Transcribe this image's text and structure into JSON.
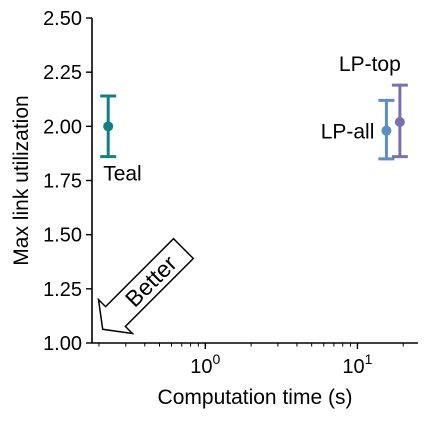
{
  "chart_data": {
    "type": "scatter",
    "title": "",
    "xlabel": "Computation time (s)",
    "ylabel": "Max link utilization",
    "xscale": "log",
    "xlim": [
      0.18,
      25
    ],
    "ylim": [
      1.0,
      2.5
    ],
    "y_ticks": [
      "1.00",
      "1.25",
      "1.50",
      "1.75",
      "2.00",
      "2.25",
      "2.50"
    ],
    "y_tick_values": [
      1.0,
      1.25,
      1.5,
      1.75,
      2.0,
      2.25,
      2.5
    ],
    "x_tick_values": [
      1,
      10
    ],
    "x_ticks": [
      {
        "base": "10",
        "exp": "0"
      },
      {
        "base": "10",
        "exp": "1"
      }
    ],
    "grid": false,
    "points": [
      {
        "label": "Teal",
        "x": 0.23,
        "y": 2.0,
        "err_low": 1.86,
        "err_high": 2.14,
        "color": "#13807f",
        "label_pos": "below"
      },
      {
        "label": "LP-all",
        "x": 15.5,
        "y": 1.98,
        "err_low": 1.85,
        "err_high": 2.12,
        "color": "#5a8fc0",
        "label_pos": "left"
      },
      {
        "label": "LP-top",
        "x": 19,
        "y": 2.02,
        "err_low": 1.86,
        "err_high": 2.19,
        "color": "#7b6fb2",
        "label_pos": "above"
      }
    ],
    "annotation": {
      "text": "Better",
      "direction": "lower-left"
    }
  }
}
